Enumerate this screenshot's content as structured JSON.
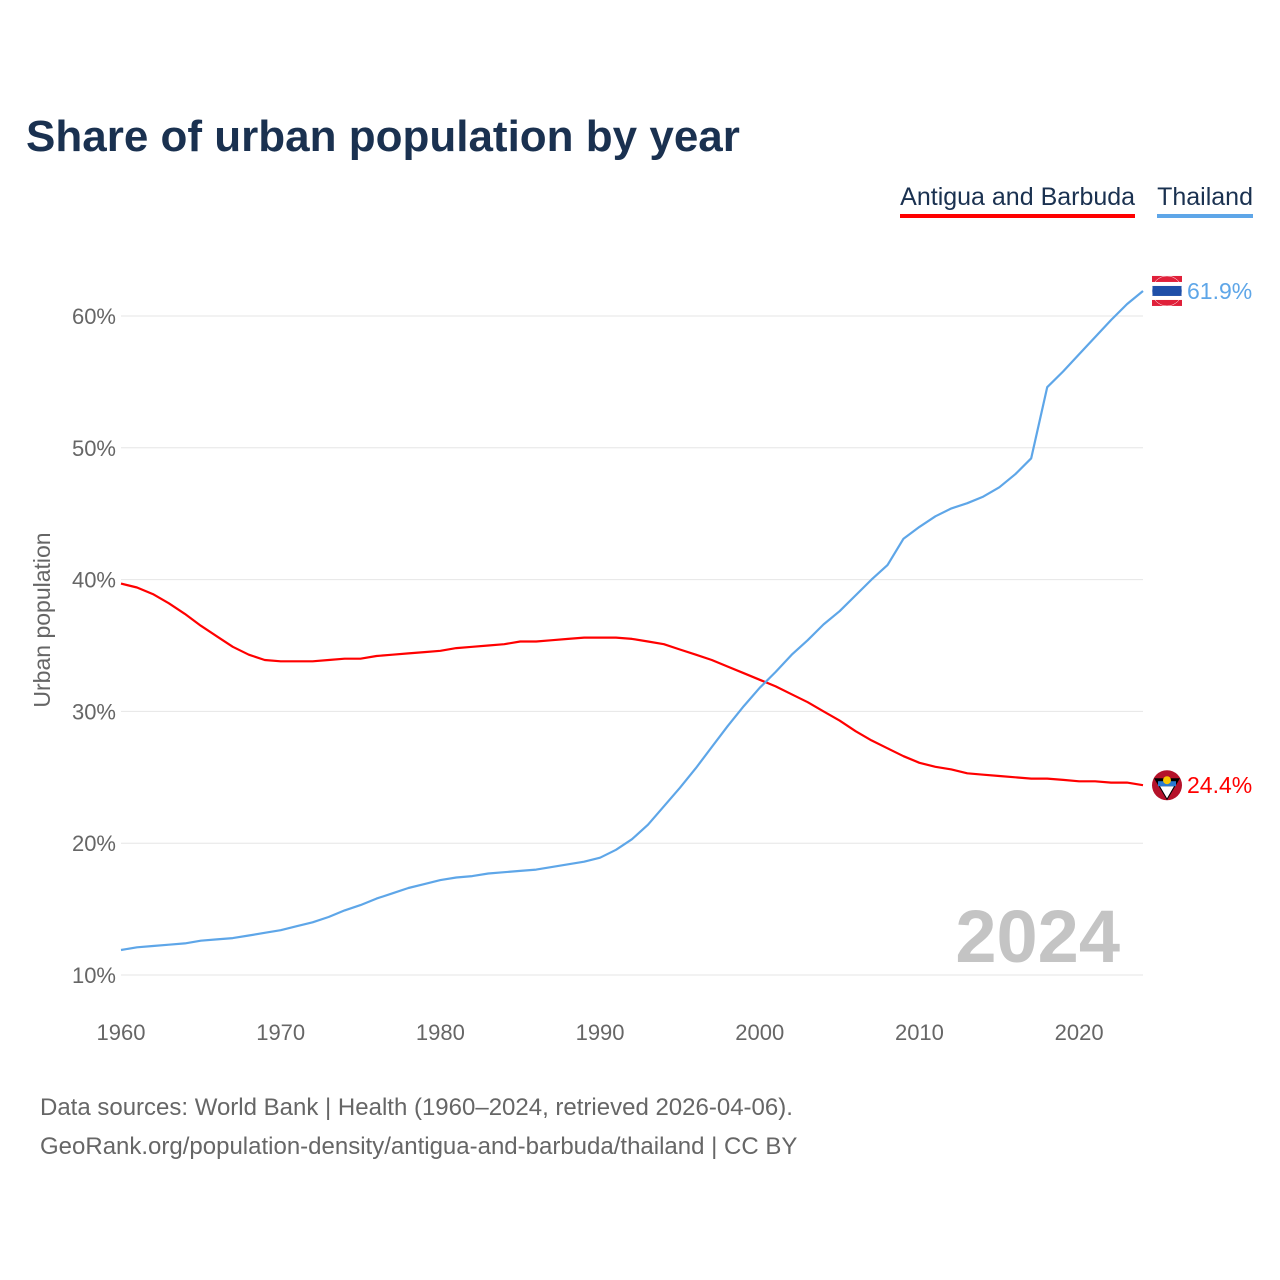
{
  "chart_data": {
    "type": "line",
    "title": "Share of urban population by year",
    "xlabel": "",
    "ylabel": "Urban population",
    "xlim": [
      1960,
      2024
    ],
    "ylim": [
      10,
      60
    ],
    "x_ticks": [
      "1960",
      "1970",
      "1980",
      "1990",
      "2000",
      "2010",
      "2020"
    ],
    "y_ticks": [
      "10%",
      "20%",
      "30%",
      "40%",
      "50%",
      "60%"
    ],
    "y_tick_values": [
      10,
      20,
      30,
      40,
      50,
      60
    ],
    "x_tick_values": [
      1960,
      1970,
      1980,
      1990,
      2000,
      2010,
      2020
    ],
    "grid": true,
    "legend_position": "top-right",
    "watermark_year": "2024",
    "x_start": 1960,
    "series": [
      {
        "name": "Antigua and Barbuda",
        "color": "#ff0000",
        "end_label": "24.4%",
        "values": [
          39.7,
          39.4,
          38.9,
          38.2,
          37.4,
          36.5,
          35.7,
          34.9,
          34.3,
          33.9,
          33.8,
          33.8,
          33.8,
          33.9,
          34.0,
          34.0,
          34.2,
          34.3,
          34.4,
          34.5,
          34.6,
          34.8,
          34.9,
          35.0,
          35.1,
          35.3,
          35.3,
          35.4,
          35.5,
          35.6,
          35.6,
          35.6,
          35.5,
          35.3,
          35.1,
          34.7,
          34.3,
          33.9,
          33.4,
          32.9,
          32.4,
          31.9,
          31.3,
          30.7,
          30.0,
          29.3,
          28.5,
          27.8,
          27.2,
          26.6,
          26.1,
          25.8,
          25.6,
          25.3,
          25.2,
          25.1,
          25.0,
          24.9,
          24.9,
          24.8,
          24.7,
          24.7,
          24.6,
          24.6,
          24.4
        ]
      },
      {
        "name": "Thailand",
        "color": "#5ea6e8",
        "end_label": "61.9%",
        "values": [
          11.9,
          12.1,
          12.2,
          12.3,
          12.4,
          12.6,
          12.7,
          12.8,
          13.0,
          13.2,
          13.4,
          13.7,
          14.0,
          14.4,
          14.9,
          15.3,
          15.8,
          16.2,
          16.6,
          16.9,
          17.2,
          17.4,
          17.5,
          17.7,
          17.8,
          17.9,
          18.0,
          18.2,
          18.4,
          18.6,
          18.9,
          19.5,
          20.3,
          21.4,
          22.8,
          24.2,
          25.7,
          27.3,
          28.9,
          30.4,
          31.8,
          33.0,
          34.3,
          35.4,
          36.6,
          37.6,
          38.8,
          40.0,
          41.1,
          43.1,
          44.0,
          44.8,
          45.4,
          45.8,
          46.3,
          47.0,
          48.0,
          49.2,
          54.6,
          55.8,
          57.1,
          58.4,
          59.7,
          60.9,
          61.9
        ]
      }
    ]
  },
  "footer": {
    "line1": "Data sources: World Bank | Health (1960–2024, retrieved 2026-04-06).",
    "line2": "GeoRank.org/population-density/antigua-and-barbuda/thailand | CC BY"
  }
}
